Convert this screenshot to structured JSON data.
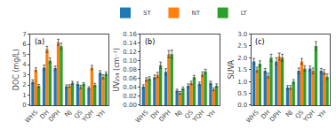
{
  "chart_data": [
    {
      "type": "bar",
      "categories": [
        "WHS",
        "DH",
        "DPH",
        "NJ",
        "QS",
        "YQH",
        "YH"
      ],
      "ylabel": "DOC (mg/L)",
      "ylim": [
        0,
        7
      ],
      "yticks": [
        0,
        1,
        2,
        3,
        4,
        5,
        6,
        7
      ],
      "grid": false,
      "legend": "top",
      "annotations": [
        "(a)"
      ],
      "series": [
        {
          "name": "ST",
          "values": [
            2.3,
            3.7,
            3.65,
            1.85,
            2.1,
            1.7,
            3.2
          ],
          "errors": [
            0.2,
            0.25,
            0.2,
            0.15,
            0.18,
            0.12,
            0.2
          ]
        },
        {
          "name": "NT",
          "values": [
            3.5,
            5.5,
            6.2,
            1.9,
            1.8,
            3.7,
            2.8
          ],
          "errors": [
            0.18,
            0.3,
            0.3,
            0.12,
            0.15,
            0.22,
            0.2
          ]
        },
        {
          "name": "LT",
          "values": [
            1.9,
            4.4,
            5.8,
            2.2,
            2.1,
            2.0,
            3.1
          ],
          "errors": [
            0.15,
            0.25,
            0.3,
            0.15,
            0.12,
            0.15,
            0.18
          ]
        }
      ]
    },
    {
      "type": "bar",
      "categories": [
        "WHS",
        "DH",
        "DPH",
        "NJ",
        "QS",
        "YQH",
        "YH"
      ],
      "ylabel": "UV₂₅₄ (cm⁻¹)",
      "ylim": [
        0,
        0.16
      ],
      "yticks": [
        {
          "value": 0.0,
          "label": "0.00"
        },
        0.02,
        0.04,
        0.06,
        0.08,
        {
          "value": 0.1,
          "label": "0.10"
        },
        0.12,
        0.14,
        0.16
      ],
      "grid": false,
      "legend": "top",
      "annotations": [
        "(b)"
      ],
      "series": [
        {
          "name": "ST",
          "values": [
            0.042,
            0.063,
            0.075,
            0.033,
            0.044,
            0.048,
            0.05
          ],
          "errors": [
            0.004,
            0.005,
            0.007,
            0.003,
            0.004,
            0.004,
            0.004
          ]
        },
        {
          "name": "NT",
          "values": [
            0.058,
            0.068,
            0.115,
            0.028,
            0.05,
            0.07,
            0.036
          ],
          "errors": [
            0.004,
            0.006,
            0.008,
            0.003,
            0.004,
            0.005,
            0.003
          ]
        },
        {
          "name": "LT",
          "values": [
            0.06,
            0.09,
            0.115,
            0.038,
            0.063,
            0.076,
            0.044
          ],
          "errors": [
            0.004,
            0.007,
            0.009,
            0.003,
            0.004,
            0.005,
            0.004
          ]
        }
      ]
    },
    {
      "type": "bar",
      "categories": [
        "WHS",
        "DH",
        "DPH",
        "NJ",
        "QS",
        "YQH",
        "YH"
      ],
      "ylabel": "SUVA",
      "ylim": [
        0,
        3.0
      ],
      "yticks": [
        {
          "value": 0.0,
          "label": "0.0"
        },
        0.5,
        {
          "value": 1.0,
          "label": "1.0"
        },
        1.5,
        {
          "value": 2.0,
          "label": "2.0"
        },
        2.5,
        {
          "value": 3.0,
          "label": "3.0"
        }
      ],
      "grid": false,
      "legend": "top",
      "annotations": [
        "(c)"
      ],
      "series": [
        {
          "name": "ST",
          "values": [
            1.85,
            1.45,
            1.85,
            0.75,
            1.45,
            1.55,
            1.45
          ],
          "errors": [
            0.12,
            0.1,
            0.15,
            0.08,
            0.12,
            0.1,
            0.1
          ]
        },
        {
          "name": "NT",
          "values": [
            1.5,
            1.25,
            2.05,
            0.75,
            1.85,
            1.45,
            1.4
          ],
          "errors": [
            0.1,
            0.1,
            0.15,
            0.08,
            0.12,
            0.12,
            0.1
          ]
        },
        {
          "name": "LT",
          "values": [
            1.75,
            2.0,
            2.0,
            1.0,
            1.55,
            2.5,
            1.2
          ],
          "errors": [
            0.12,
            0.15,
            0.15,
            0.08,
            0.12,
            0.18,
            0.12
          ]
        }
      ]
    }
  ]
}
